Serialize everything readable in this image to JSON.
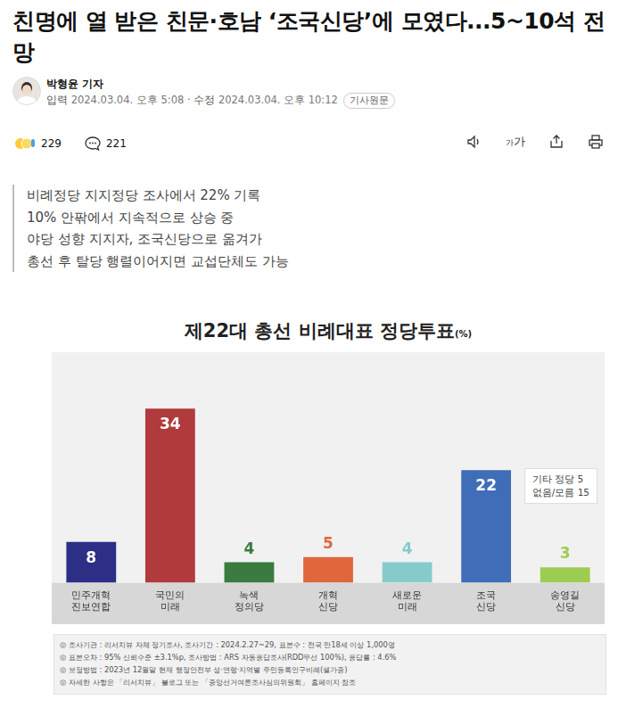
{
  "article": {
    "headline": "친명에 열 받은 친문·호남 ‘조국신당’에 모였다...5~10석 전망",
    "byline": "박형윤 기자",
    "published_label": "입력",
    "published": "2024.03.04. 오후 5:08",
    "updated_label": "수정",
    "updated": "2024.03.04. 오후 10:12",
    "source_link": "기사원문",
    "reactions": 229,
    "comments": 221,
    "font_size_icon": "가가",
    "summary": [
      "비례정당 지지정당 조사에서 22% 기록",
      "10% 안팎에서 지속적으로 상승 중",
      "야당 성향 지지자, 조국신당으로 옮겨가",
      "총선 후 탈당 행렬이어지면 교섭단체도 가능"
    ]
  },
  "chart_data": {
    "type": "bar",
    "title": "제22대 총선 비례대표 정당투표",
    "unit_label": "(%)",
    "categories": [
      "민주개혁 진보연합",
      "국민의 미래",
      "녹색 정의당",
      "개혁 신당",
      "새로운 미래",
      "조국 신당",
      "송영길 신당"
    ],
    "values": [
      8,
      34,
      4,
      5,
      4,
      22,
      3
    ],
    "colors": [
      "#2d2f86",
      "#b13a3c",
      "#3b7b3f",
      "#e0663c",
      "#86cbcc",
      "#3f6db8",
      "#9dcc52"
    ],
    "ylim": [
      0,
      45
    ],
    "grid": false,
    "tick_labels": "x",
    "data_labels": true,
    "annotation": [
      "기타 정당 5",
      "없음/모름 15"
    ],
    "notes": [
      "◎ 조사기관 : 리서치뷰 자체 정기조사, 조사기간 : 2024.2.27~29, 표본수 : 전국 만18세 이상 1,000명",
      "◎ 표본오차 : 95% 신뢰수준 ±3.1%p, 조사방법 : ARS 자동응답조사(RDD무선 100%), 응답률 : 4.6%",
      "◎ 보정방법 : 2023년 12월말 현재 행정안전부 성·연령·지역별 주민등록인구비례(셀가중)",
      "◎ 자세한 사항은 「리서치뷰」 블로그 또는 「중앙선거여론조사심의위원회」 홈페이지 참조"
    ]
  }
}
